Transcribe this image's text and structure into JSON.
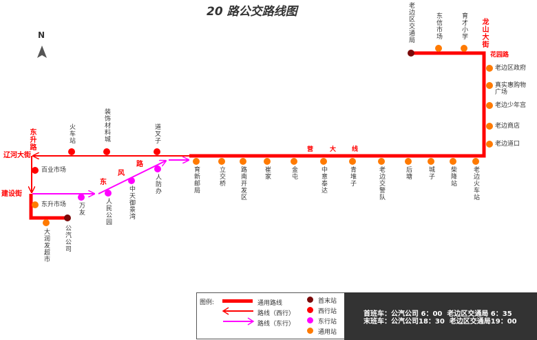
{
  "title": "20 路公交路线图",
  "north": "N",
  "roads": {
    "dongsheng": "东升路",
    "liaohe": "辽河大街",
    "jianshe": "建设街",
    "dongfeng": [
      "东",
      "风",
      "路"
    ],
    "yingda": [
      "营",
      "大",
      "线"
    ],
    "longshan": "龙山大街",
    "huayuan": "花园路"
  },
  "colors": {
    "common_line": "#ff0000",
    "westbound": "#ff0000",
    "eastbound": "#ff00ff",
    "terminal": "#7a0a0a",
    "west_stop": "#ff0000",
    "east_stop": "#ff00ff",
    "common_stop": "#ff7a00"
  },
  "stops": {
    "terminals": [
      "老边区交通局",
      "公汽公司"
    ],
    "west": [
      "火车站",
      "装饰材料城",
      "道叉子",
      "百业市场"
    ],
    "east": [
      "万友",
      "人民公园",
      "中天御景湾",
      "人防办"
    ],
    "common_left": [
      "东升市场",
      "大润发超市"
    ],
    "main": [
      "育新邮局",
      "立交桥",
      "路南开发区",
      "崔家",
      "金屯",
      "中意泰达",
      "青堆子",
      "老边交警队",
      "后塘",
      "城子",
      "柴降站",
      "老边火车站"
    ],
    "right": [
      "老边区政府",
      "真实惠购物广场",
      "老边少年宫",
      "老边商店",
      "老边道口"
    ],
    "top": [
      "东信市场",
      "育才小学"
    ]
  },
  "legend": {
    "title": "图例:",
    "common_line": "通用路线",
    "westbound": "路线（西行）",
    "eastbound": "路线（东行）",
    "terminal": "首末站",
    "west_stop": "西行站",
    "east_stop": "东行站",
    "common_stop": "通用站"
  },
  "schedule": {
    "first": "首班车：公汽公司 6：00  老边区交通局 6：35",
    "last": "末班车：公汽公司18：30  老边区交通局19：00"
  }
}
